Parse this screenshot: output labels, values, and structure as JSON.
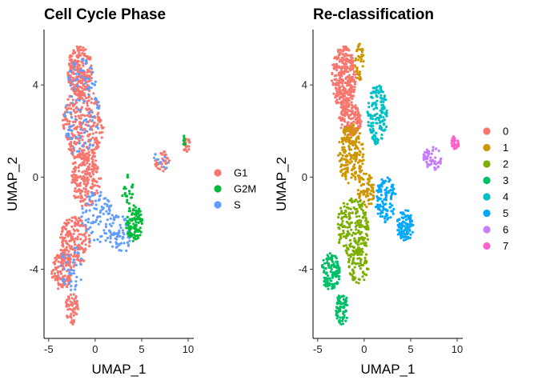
{
  "chart_data": [
    {
      "type": "scatter",
      "title": "Cell Cycle Phase",
      "xlabel": "UMAP_1",
      "ylabel": "UMAP_2",
      "xlim": [
        -5.5,
        10.6
      ],
      "ylim": [
        -7.0,
        6.4
      ],
      "xticks": [
        -5,
        0,
        5,
        10
      ],
      "yticks": [
        -4,
        0,
        4
      ],
      "grid": false,
      "legend_position": "right",
      "series": [
        {
          "name": "G1",
          "color": "#F8766D"
        },
        {
          "name": "G2M",
          "color": "#00BA38"
        },
        {
          "name": "S",
          "color": "#619CFF"
        }
      ],
      "regions": [
        {
          "series": "G1",
          "cx": -1.6,
          "cy": 4.6,
          "rx": 1.4,
          "ry": 1.1,
          "n": 230
        },
        {
          "series": "G1",
          "cx": -1.3,
          "cy": 2.3,
          "rx": 2.2,
          "ry": 1.6,
          "n": 260
        },
        {
          "series": "G1",
          "cx": -1.0,
          "cy": 0.0,
          "rx": 1.6,
          "ry": 1.3,
          "n": 210
        },
        {
          "series": "G1",
          "cx": -2.2,
          "cy": -2.8,
          "rx": 1.6,
          "ry": 1.1,
          "n": 180
        },
        {
          "series": "G1",
          "cx": -3.6,
          "cy": -4.1,
          "rx": 1.1,
          "ry": 0.8,
          "n": 120
        },
        {
          "series": "G1",
          "cx": -2.5,
          "cy": -5.7,
          "rx": 0.7,
          "ry": 0.7,
          "n": 60
        },
        {
          "series": "G1",
          "cx": 7.2,
          "cy": 0.7,
          "rx": 0.8,
          "ry": 0.45,
          "n": 30
        },
        {
          "series": "G1",
          "cx": 9.8,
          "cy": 1.4,
          "rx": 0.4,
          "ry": 0.3,
          "n": 25
        },
        {
          "series": "S",
          "cx": -1.5,
          "cy": 3.0,
          "rx": 2.0,
          "ry": 2.2,
          "n": 110
        },
        {
          "series": "S",
          "cx": 0.3,
          "cy": -1.8,
          "rx": 1.8,
          "ry": 1.2,
          "n": 90
        },
        {
          "series": "S",
          "cx": 2.6,
          "cy": -2.5,
          "rx": 1.2,
          "ry": 0.9,
          "n": 70
        },
        {
          "series": "S",
          "cx": -2.5,
          "cy": -4.0,
          "rx": 1.4,
          "ry": 1.0,
          "n": 40
        },
        {
          "series": "S",
          "cx": 7.2,
          "cy": 0.8,
          "rx": 0.9,
          "ry": 0.5,
          "n": 12
        },
        {
          "series": "G2M",
          "cx": 4.2,
          "cy": -2.0,
          "rx": 0.9,
          "ry": 0.8,
          "n": 110
        },
        {
          "series": "G2M",
          "cx": 3.5,
          "cy": -0.6,
          "rx": 0.6,
          "ry": 0.7,
          "n": 25
        },
        {
          "series": "G2M",
          "cx": 9.6,
          "cy": 1.6,
          "rx": 0.3,
          "ry": 0.2,
          "n": 8
        }
      ]
    },
    {
      "type": "scatter",
      "title": "Re-classification",
      "xlabel": "UMAP_1",
      "ylabel": "UMAP_2",
      "xlim": [
        -5.5,
        10.6
      ],
      "ylim": [
        -7.0,
        6.4
      ],
      "xticks": [
        -5,
        0,
        5,
        10
      ],
      "yticks": [
        -4,
        0,
        4
      ],
      "grid": false,
      "legend_position": "right",
      "series": [
        {
          "name": "0",
          "color": "#F8766D"
        },
        {
          "name": "1",
          "color": "#CD9600"
        },
        {
          "name": "2",
          "color": "#7CAE00"
        },
        {
          "name": "3",
          "color": "#00BE67"
        },
        {
          "name": "4",
          "color": "#00BFC4"
        },
        {
          "name": "5",
          "color": "#00A9FF"
        },
        {
          "name": "6",
          "color": "#C77CFF"
        },
        {
          "name": "7",
          "color": "#FF61CC"
        }
      ],
      "regions": [
        {
          "series": "0",
          "cx": -2.2,
          "cy": 4.3,
          "rx": 1.3,
          "ry": 1.4,
          "n": 300
        },
        {
          "series": "0",
          "cx": -1.5,
          "cy": 2.5,
          "rx": 1.2,
          "ry": 0.7,
          "n": 120
        },
        {
          "series": "1",
          "cx": -0.5,
          "cy": 5.0,
          "rx": 0.5,
          "ry": 0.8,
          "n": 40
        },
        {
          "series": "1",
          "cx": -1.4,
          "cy": 1.0,
          "rx": 1.4,
          "ry": 1.3,
          "n": 200
        },
        {
          "series": "1",
          "cx": 0.2,
          "cy": -0.6,
          "rx": 0.9,
          "ry": 0.8,
          "n": 70
        },
        {
          "series": "4",
          "cx": 1.4,
          "cy": 2.7,
          "rx": 1.1,
          "ry": 1.3,
          "n": 150
        },
        {
          "series": "5",
          "cx": 2.3,
          "cy": -1.0,
          "rx": 1.1,
          "ry": 1.0,
          "n": 110
        },
        {
          "series": "5",
          "cx": 4.4,
          "cy": -2.1,
          "rx": 0.9,
          "ry": 0.7,
          "n": 100
        },
        {
          "series": "2",
          "cx": -1.2,
          "cy": -2.2,
          "rx": 1.8,
          "ry": 1.3,
          "n": 200
        },
        {
          "series": "2",
          "cx": -0.6,
          "cy": -3.8,
          "rx": 1.1,
          "ry": 0.8,
          "n": 80
        },
        {
          "series": "3",
          "cx": -3.6,
          "cy": -4.1,
          "rx": 1.0,
          "ry": 0.8,
          "n": 120
        },
        {
          "series": "3",
          "cx": -2.4,
          "cy": -5.7,
          "rx": 0.7,
          "ry": 0.7,
          "n": 70
        },
        {
          "series": "6",
          "cx": 7.3,
          "cy": 0.8,
          "rx": 1.0,
          "ry": 0.5,
          "n": 55
        },
        {
          "series": "7",
          "cx": 9.8,
          "cy": 1.5,
          "rx": 0.4,
          "ry": 0.3,
          "n": 35
        }
      ]
    }
  ]
}
